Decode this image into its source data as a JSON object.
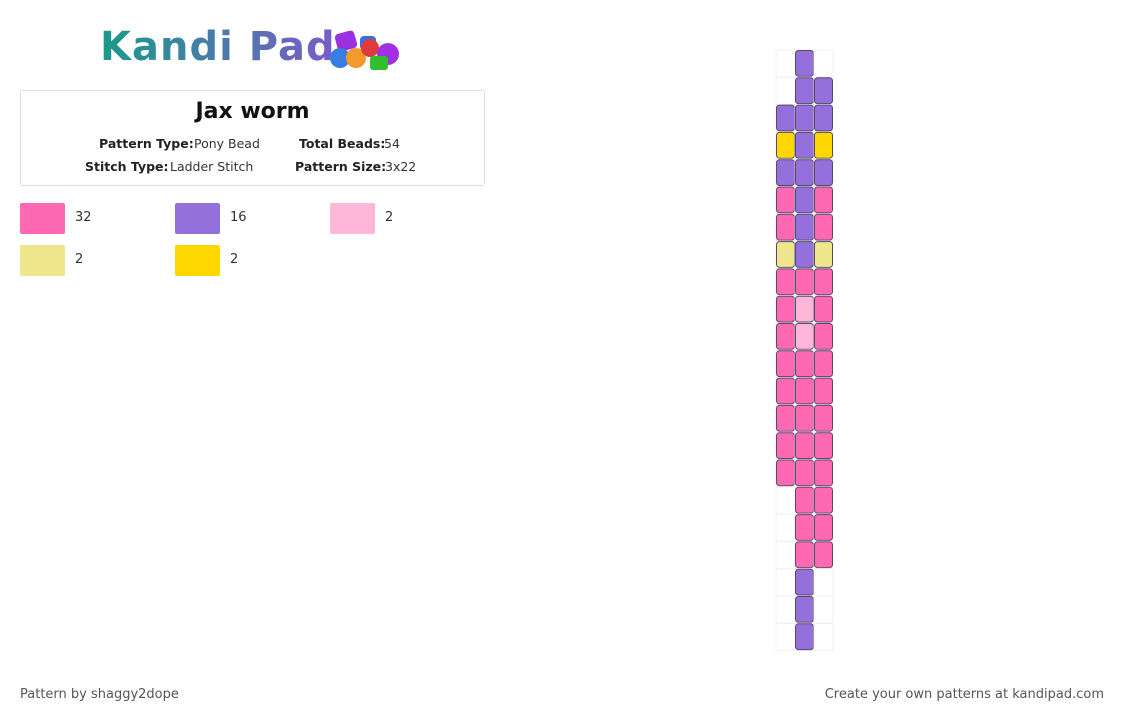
{
  "header": {
    "logo": "Kandi Pad"
  },
  "pattern": {
    "title": "Jax worm",
    "fields": [
      {
        "label": "Pattern Type:",
        "value": "Pony Bead"
      },
      {
        "label": "Total Beads:",
        "value": "54"
      },
      {
        "label": "Stitch Type:",
        "value": "Ladder Stitch"
      },
      {
        "label": "Pattern Size:",
        "value": "3x22"
      }
    ]
  },
  "legend": [
    {
      "color": "#ff69b4",
      "count": 32
    },
    {
      "color": "#9370db",
      "count": 16
    },
    {
      "color": "#ffb6d9",
      "count": 2
    },
    {
      "color": "#f0e68c",
      "count": 2
    },
    {
      "color": "#ffd700",
      "count": 2
    }
  ],
  "grid": {
    "rows": [
      [
        null,
        "#9370db",
        null
      ],
      [
        null,
        "#9370db",
        "#9370db"
      ],
      [
        "#9370db",
        "#9370db",
        "#9370db"
      ],
      [
        "#ffd700",
        "#9370db",
        "#ffd700"
      ],
      [
        "#9370db",
        "#9370db",
        "#9370db"
      ],
      [
        "#ff69b4",
        "#9370db",
        "#ff69b4"
      ],
      [
        "#ff69b4",
        "#9370db",
        "#ff69b4"
      ],
      [
        "#f0e68c",
        "#9370db",
        "#f0e68c"
      ],
      [
        "#ff69b4",
        "#ff69b4",
        "#ff69b4"
      ],
      [
        "#ff69b4",
        "#ffb6d9",
        "#ff69b4"
      ],
      [
        "#ff69b4",
        "#ffb6d9",
        "#ff69b4"
      ],
      [
        "#ff69b4",
        "#ff69b4",
        "#ff69b4"
      ],
      [
        "#ff69b4",
        "#ff69b4",
        "#ff69b4"
      ],
      [
        "#ff69b4",
        "#ff69b4",
        "#ff69b4"
      ],
      [
        "#ff69b4",
        "#ff69b4",
        "#ff69b4"
      ],
      [
        "#ff69b4",
        "#ff69b4",
        "#ff69b4"
      ],
      [
        null,
        "#ff69b4",
        "#ff69b4"
      ],
      [
        null,
        "#ff69b4",
        "#ff69b4"
      ],
      [
        null,
        "#ff69b4",
        "#ff69b4"
      ],
      [
        null,
        "#9370db",
        null
      ],
      [
        null,
        "#9370db",
        null
      ],
      [
        null,
        "#9370db",
        null
      ]
    ]
  },
  "footer": {
    "credit": "Pattern by shaggy2dope",
    "promo": "Create your own patterns at kandipad.com"
  }
}
